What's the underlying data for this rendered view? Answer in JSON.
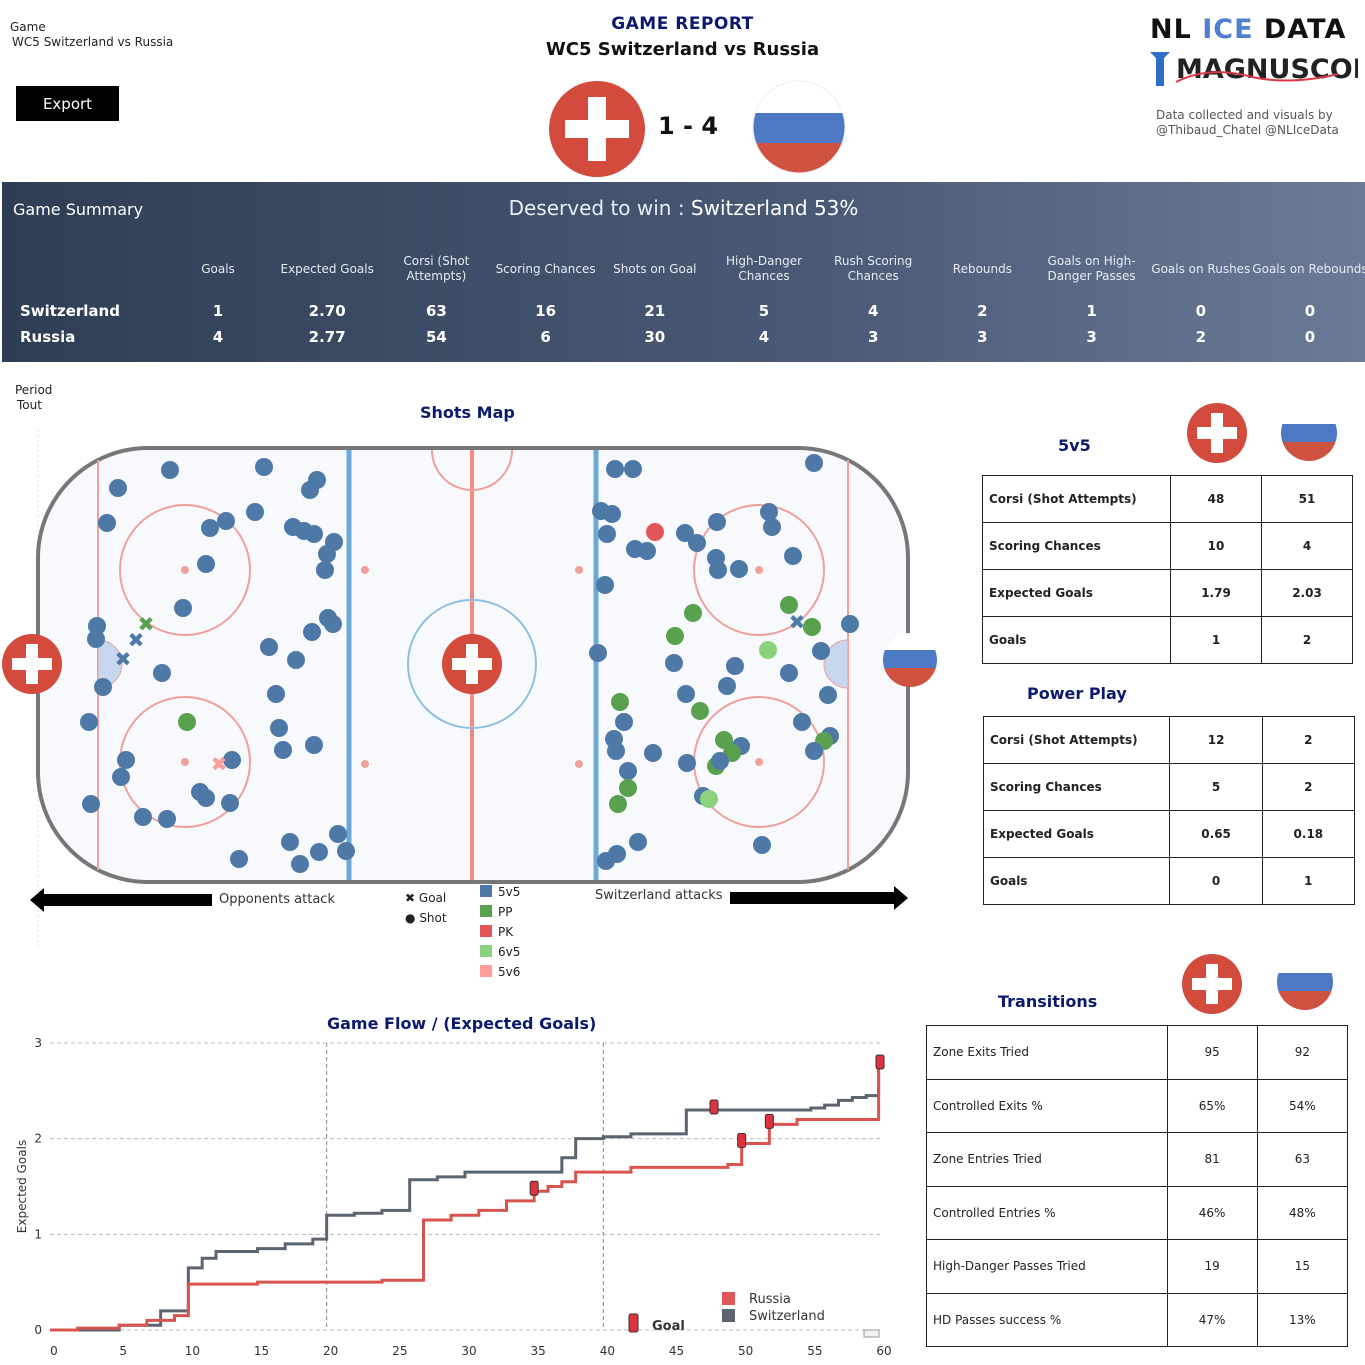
{
  "filter": {
    "label": "Game",
    "value": "WC5 Switzerland vs Russia"
  },
  "export_label": "Export",
  "report": {
    "label": "GAME REPORT",
    "subtitle": "WC5 Switzerland vs Russia",
    "score": "1 - 4"
  },
  "brand": {
    "line1a": "NL ",
    "line1b": "ICE",
    "line1c": " DATA",
    "line2": "MAGNUSCORSI",
    "credits1": "Data collected and visuals by",
    "credits2": "@Thibaud_Chatel @NLIceData"
  },
  "summary": {
    "title": "Game Summary",
    "deserved_prefix": "Deserved to win : ",
    "deserved_value": "Switzerland 53%",
    "columns": [
      "Goals",
      "Expected Goals",
      "Corsi (Shot Attempts)",
      "Scoring Chances",
      "Shots on Goal",
      "High-Danger Chances",
      "Rush Scoring Chances",
      "Rebounds",
      "Goals on High-Danger Passes",
      "Goals on Rushes",
      "Goals on Rebounds"
    ],
    "rows": [
      {
        "team": "Switzerland",
        "values": [
          "1",
          "2.70",
          "63",
          "16",
          "21",
          "5",
          "4",
          "2",
          "1",
          "0",
          "0"
        ]
      },
      {
        "team": "Russia",
        "values": [
          "4",
          "2.77",
          "54",
          "6",
          "30",
          "4",
          "3",
          "3",
          "3",
          "2",
          "0"
        ]
      }
    ]
  },
  "period": {
    "label": "Period",
    "value": "Tout"
  },
  "shots_map": {
    "title": "Shots Map",
    "opp_attack": "Opponents attack",
    "sui_attack": "Switzerland attacks",
    "legend_marker": [
      {
        "label": "Goal"
      },
      {
        "label": "Shot"
      }
    ],
    "legend_strength": [
      {
        "label": "5v5",
        "color": "#4e79a7"
      },
      {
        "label": "PP",
        "color": "#59a14f"
      },
      {
        "label": "PK",
        "color": "#e15759"
      },
      {
        "label": "6v5",
        "color": "#8cd17d"
      },
      {
        "label": "5v6",
        "color": "#ff9d9a"
      }
    ]
  },
  "fivev5": {
    "title": "5v5",
    "rows": [
      {
        "label": "Corsi (Shot Attempts)",
        "sui": "48",
        "rus": "51"
      },
      {
        "label": "Scoring Chances",
        "sui": "10",
        "rus": "4"
      },
      {
        "label": "Expected Goals",
        "sui": "1.79",
        "rus": "2.03"
      },
      {
        "label": "Goals",
        "sui": "1",
        "rus": "2"
      }
    ]
  },
  "powerplay": {
    "title": "Power Play",
    "rows": [
      {
        "label": "Corsi (Shot Attempts)",
        "sui": "12",
        "rus": "2"
      },
      {
        "label": "Scoring Chances",
        "sui": "5",
        "rus": "2"
      },
      {
        "label": "Expected Goals",
        "sui": "0.65",
        "rus": "0.18"
      },
      {
        "label": "Goals",
        "sui": "0",
        "rus": "1"
      }
    ]
  },
  "transitions": {
    "title": "Transitions",
    "rows": [
      {
        "label": "Zone Exits Tried",
        "sui": "95",
        "rus": "92"
      },
      {
        "label": "Controlled Exits %",
        "sui": "65%",
        "rus": "54%"
      },
      {
        "label": "Zone Entries Tried",
        "sui": "81",
        "rus": "63"
      },
      {
        "label": "Controlled Entries %",
        "sui": "46%",
        "rus": "48%"
      },
      {
        "label": "High-Danger Passes Tried",
        "sui": "19",
        "rus": "15"
      },
      {
        "label": "HD Passes success %",
        "sui": "47%",
        "rus": "13%"
      }
    ]
  },
  "chart_data": {
    "type": "line",
    "title": "Game Flow  /  (Expected Goals)",
    "xlabel": "",
    "ylabel": "Expected Goals",
    "xlim": [
      0,
      60
    ],
    "ylim": [
      0,
      3
    ],
    "xticks": [
      0,
      5,
      10,
      15,
      20,
      25,
      30,
      35,
      40,
      45,
      50,
      55,
      60
    ],
    "yticks": [
      0,
      1,
      2,
      3
    ],
    "period_lines": [
      20,
      40
    ],
    "legend": {
      "goal": "Goal",
      "placement": "bottom-right"
    },
    "series": [
      {
        "name": "Switzerland",
        "color": "#5b6470",
        "x": [
          0,
          3,
          5,
          8,
          10,
          11,
          12,
          15,
          17,
          19,
          20,
          22,
          24,
          26,
          28,
          30,
          33,
          37,
          38,
          40,
          42,
          46,
          52,
          55,
          56,
          57,
          58,
          59,
          59.9,
          60
        ],
        "y": [
          0,
          0,
          0.05,
          0.2,
          0.65,
          0.75,
          0.82,
          0.85,
          0.9,
          0.95,
          1.2,
          1.22,
          1.25,
          1.57,
          1.6,
          1.65,
          1.65,
          1.8,
          2.0,
          2.02,
          2.05,
          2.3,
          2.3,
          2.32,
          2.35,
          2.4,
          2.43,
          2.45,
          2.7,
          2.7
        ]
      },
      {
        "name": "Russia",
        "color": "#d9534f",
        "x": [
          0,
          2,
          5,
          7,
          9,
          10,
          15,
          20,
          24,
          27,
          29,
          31,
          33,
          35,
          36,
          37,
          38,
          42,
          45,
          49,
          50,
          52,
          54,
          58,
          59.9,
          60
        ],
        "y": [
          0,
          0.02,
          0.05,
          0.1,
          0.15,
          0.48,
          0.5,
          0.5,
          0.52,
          1.15,
          1.2,
          1.25,
          1.35,
          1.45,
          1.5,
          1.55,
          1.65,
          1.7,
          1.7,
          1.73,
          1.95,
          2.15,
          2.2,
          2.2,
          2.77,
          2.77
        ]
      }
    ],
    "goals": [
      {
        "team": "Switzerland",
        "x": 48,
        "y": 2.3
      },
      {
        "team": "Russia",
        "x": 35,
        "y": 1.45
      },
      {
        "team": "Russia",
        "x": 50,
        "y": 1.95
      },
      {
        "team": "Russia",
        "x": 52,
        "y": 2.15
      },
      {
        "team": "Russia",
        "x": 60,
        "y": 2.77
      }
    ]
  }
}
